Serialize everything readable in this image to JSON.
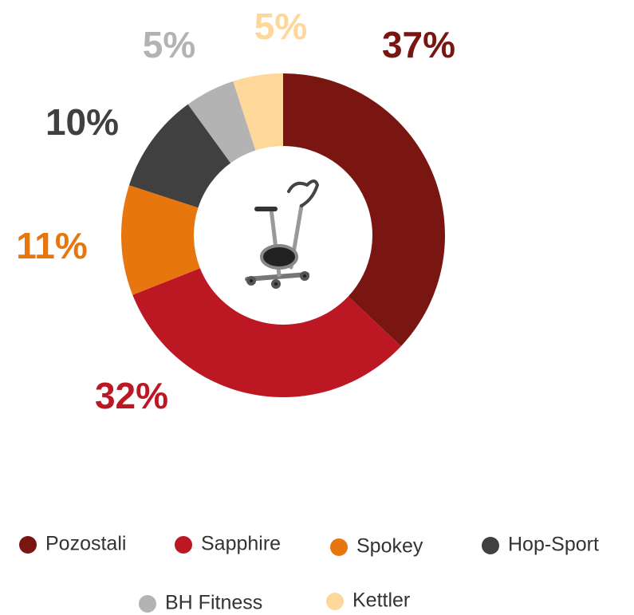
{
  "chart_data": {
    "type": "donut",
    "categories": [
      "Pozostali",
      "Sapphire",
      "Spokey",
      "Hop-Sport",
      "BH Fitness",
      "Kettler"
    ],
    "values": [
      37,
      32,
      11,
      10,
      5,
      5
    ],
    "value_labels": [
      "37%",
      "32%",
      "11%",
      "10%",
      "5%",
      "5%"
    ],
    "colors": [
      "#7a1612",
      "#bb1823",
      "#e8760f",
      "#404040",
      "#b3b3b3",
      "#fdd89a"
    ],
    "legend": "bottom"
  }
}
